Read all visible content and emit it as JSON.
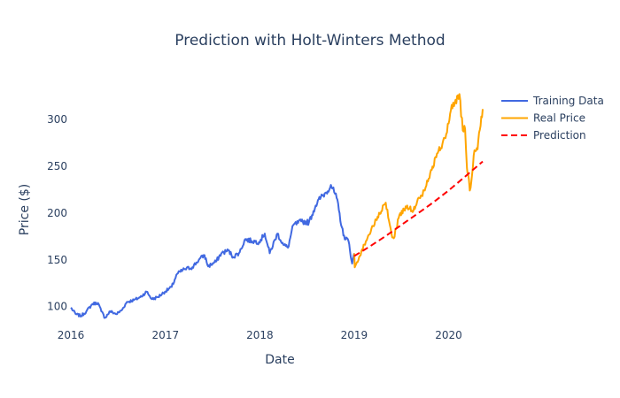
{
  "chart_data": {
    "type": "line",
    "title": "Prediction with Holt-Winters Method",
    "xlabel": "Date",
    "ylabel": "Price ($)",
    "xlim": [
      "2016-01-01",
      "2020-06-05"
    ],
    "ylim": [
      78,
      333
    ],
    "x_ticks": [
      "2016-01-01",
      "2017-01-01",
      "2018-01-01",
      "2019-01-01",
      "2020-01-01"
    ],
    "x_tick_labels": [
      "2016",
      "2017",
      "2018",
      "2019",
      "2020"
    ],
    "y_ticks": [
      100,
      150,
      200,
      250,
      300
    ],
    "y_tick_labels": [
      "100",
      "150",
      "200",
      "250",
      "300"
    ],
    "grid": false,
    "legend": "top-right",
    "series": [
      {
        "name": "Training Data",
        "color": "#4169e1",
        "dash": "solid",
        "points": [
          [
            "2016-01-01",
            99
          ],
          [
            "2016-01-20",
            92
          ],
          [
            "2016-02-10",
            90
          ],
          [
            "2016-03-01",
            95
          ],
          [
            "2016-03-25",
            103
          ],
          [
            "2016-04-15",
            104
          ],
          [
            "2016-04-28",
            95
          ],
          [
            "2016-05-12",
            88
          ],
          [
            "2016-06-01",
            95
          ],
          [
            "2016-06-25",
            92
          ],
          [
            "2016-07-15",
            96
          ],
          [
            "2016-08-05",
            105
          ],
          [
            "2016-09-01",
            107
          ],
          [
            "2016-09-25",
            110
          ],
          [
            "2016-10-20",
            116
          ],
          [
            "2016-11-10",
            108
          ],
          [
            "2016-12-01",
            110
          ],
          [
            "2016-12-30",
            116
          ],
          [
            "2017-01-25",
            121
          ],
          [
            "2017-02-15",
            135
          ],
          [
            "2017-03-15",
            140
          ],
          [
            "2017-04-15",
            142
          ],
          [
            "2017-05-10",
            150
          ],
          [
            "2017-06-01",
            155
          ],
          [
            "2017-06-15",
            143
          ],
          [
            "2017-07-15",
            148
          ],
          [
            "2017-08-05",
            157
          ],
          [
            "2017-09-01",
            160
          ],
          [
            "2017-09-20",
            153
          ],
          [
            "2017-10-15",
            158
          ],
          [
            "2017-11-05",
            172
          ],
          [
            "2017-12-01",
            170
          ],
          [
            "2017-12-29",
            169
          ],
          [
            "2018-01-20",
            178
          ],
          [
            "2018-02-08",
            157
          ],
          [
            "2018-03-10",
            178
          ],
          [
            "2018-04-02",
            166
          ],
          [
            "2018-04-20",
            163
          ],
          [
            "2018-05-10",
            187
          ],
          [
            "2018-06-10",
            191
          ],
          [
            "2018-07-10",
            190
          ],
          [
            "2018-08-05",
            208
          ],
          [
            "2018-08-25",
            217
          ],
          [
            "2018-09-15",
            222
          ],
          [
            "2018-10-03",
            230
          ],
          [
            "2018-10-25",
            216
          ],
          [
            "2018-11-20",
            176
          ],
          [
            "2018-12-10",
            170
          ],
          [
            "2018-12-24",
            146
          ],
          [
            "2019-01-01",
            157
          ]
        ]
      },
      {
        "name": "Real Price",
        "color": "#ffa500",
        "dash": "solid",
        "points": [
          [
            "2019-01-01",
            157
          ],
          [
            "2019-01-03",
            142
          ],
          [
            "2019-01-20",
            153
          ],
          [
            "2019-02-15",
            170
          ],
          [
            "2019-03-15",
            186
          ],
          [
            "2019-04-10",
            199
          ],
          [
            "2019-05-03",
            211
          ],
          [
            "2019-05-25",
            178
          ],
          [
            "2019-06-03",
            173
          ],
          [
            "2019-06-25",
            198
          ],
          [
            "2019-07-25",
            208
          ],
          [
            "2019-08-15",
            201
          ],
          [
            "2019-09-10",
            216
          ],
          [
            "2019-10-01",
            224
          ],
          [
            "2019-10-25",
            246
          ],
          [
            "2019-11-20",
            264
          ],
          [
            "2019-12-20",
            280
          ],
          [
            "2020-01-10",
            310
          ],
          [
            "2020-01-25",
            318
          ],
          [
            "2020-02-12",
            327
          ],
          [
            "2020-02-25",
            288
          ],
          [
            "2020-03-05",
            290
          ],
          [
            "2020-03-12",
            248
          ],
          [
            "2020-03-16",
            242
          ],
          [
            "2020-03-23",
            224
          ],
          [
            "2020-04-01",
            241
          ],
          [
            "2020-04-10",
            267
          ],
          [
            "2020-04-22",
            268
          ],
          [
            "2020-05-01",
            289
          ],
          [
            "2020-05-12",
            311
          ]
        ]
      },
      {
        "name": "Prediction",
        "color": "#ff0000",
        "dash": "dashed",
        "points": [
          [
            "2019-01-01",
            154
          ],
          [
            "2019-03-01",
            164
          ],
          [
            "2019-05-01",
            175
          ],
          [
            "2019-07-01",
            187
          ],
          [
            "2019-09-01",
            199
          ],
          [
            "2019-11-01",
            211
          ],
          [
            "2020-01-01",
            224
          ],
          [
            "2020-03-01",
            238
          ],
          [
            "2020-05-12",
            255
          ]
        ]
      }
    ]
  }
}
